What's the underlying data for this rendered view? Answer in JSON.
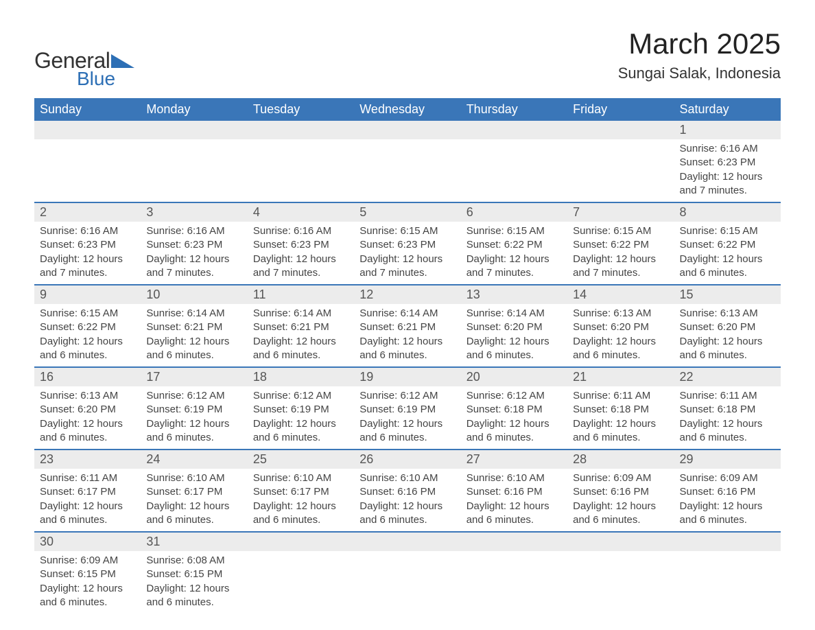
{
  "logo": {
    "text_general": "General",
    "text_blue": "Blue",
    "triangle_color": "#2d6fb5"
  },
  "header": {
    "month_title": "March 2025",
    "location": "Sungai Salak, Indonesia"
  },
  "colors": {
    "header_bg": "#3a76b8",
    "header_text": "#ffffff",
    "daynum_bg": "#ececec",
    "row_border": "#3a76b8",
    "body_text": "#444444",
    "page_bg": "#ffffff"
  },
  "typography": {
    "month_title_fontsize": 42,
    "location_fontsize": 22,
    "weekday_fontsize": 18,
    "daynum_fontsize": 18,
    "detail_fontsize": 15,
    "logo_fontsize": 32
  },
  "weekdays": [
    "Sunday",
    "Monday",
    "Tuesday",
    "Wednesday",
    "Thursday",
    "Friday",
    "Saturday"
  ],
  "weeks": [
    [
      null,
      null,
      null,
      null,
      null,
      null,
      {
        "day": "1",
        "sunrise": "Sunrise: 6:16 AM",
        "sunset": "Sunset: 6:23 PM",
        "daylight": "Daylight: 12 hours and 7 minutes."
      }
    ],
    [
      {
        "day": "2",
        "sunrise": "Sunrise: 6:16 AM",
        "sunset": "Sunset: 6:23 PM",
        "daylight": "Daylight: 12 hours and 7 minutes."
      },
      {
        "day": "3",
        "sunrise": "Sunrise: 6:16 AM",
        "sunset": "Sunset: 6:23 PM",
        "daylight": "Daylight: 12 hours and 7 minutes."
      },
      {
        "day": "4",
        "sunrise": "Sunrise: 6:16 AM",
        "sunset": "Sunset: 6:23 PM",
        "daylight": "Daylight: 12 hours and 7 minutes."
      },
      {
        "day": "5",
        "sunrise": "Sunrise: 6:15 AM",
        "sunset": "Sunset: 6:23 PM",
        "daylight": "Daylight: 12 hours and 7 minutes."
      },
      {
        "day": "6",
        "sunrise": "Sunrise: 6:15 AM",
        "sunset": "Sunset: 6:22 PM",
        "daylight": "Daylight: 12 hours and 7 minutes."
      },
      {
        "day": "7",
        "sunrise": "Sunrise: 6:15 AM",
        "sunset": "Sunset: 6:22 PM",
        "daylight": "Daylight: 12 hours and 7 minutes."
      },
      {
        "day": "8",
        "sunrise": "Sunrise: 6:15 AM",
        "sunset": "Sunset: 6:22 PM",
        "daylight": "Daylight: 12 hours and 6 minutes."
      }
    ],
    [
      {
        "day": "9",
        "sunrise": "Sunrise: 6:15 AM",
        "sunset": "Sunset: 6:22 PM",
        "daylight": "Daylight: 12 hours and 6 minutes."
      },
      {
        "day": "10",
        "sunrise": "Sunrise: 6:14 AM",
        "sunset": "Sunset: 6:21 PM",
        "daylight": "Daylight: 12 hours and 6 minutes."
      },
      {
        "day": "11",
        "sunrise": "Sunrise: 6:14 AM",
        "sunset": "Sunset: 6:21 PM",
        "daylight": "Daylight: 12 hours and 6 minutes."
      },
      {
        "day": "12",
        "sunrise": "Sunrise: 6:14 AM",
        "sunset": "Sunset: 6:21 PM",
        "daylight": "Daylight: 12 hours and 6 minutes."
      },
      {
        "day": "13",
        "sunrise": "Sunrise: 6:14 AM",
        "sunset": "Sunset: 6:20 PM",
        "daylight": "Daylight: 12 hours and 6 minutes."
      },
      {
        "day": "14",
        "sunrise": "Sunrise: 6:13 AM",
        "sunset": "Sunset: 6:20 PM",
        "daylight": "Daylight: 12 hours and 6 minutes."
      },
      {
        "day": "15",
        "sunrise": "Sunrise: 6:13 AM",
        "sunset": "Sunset: 6:20 PM",
        "daylight": "Daylight: 12 hours and 6 minutes."
      }
    ],
    [
      {
        "day": "16",
        "sunrise": "Sunrise: 6:13 AM",
        "sunset": "Sunset: 6:20 PM",
        "daylight": "Daylight: 12 hours and 6 minutes."
      },
      {
        "day": "17",
        "sunrise": "Sunrise: 6:12 AM",
        "sunset": "Sunset: 6:19 PM",
        "daylight": "Daylight: 12 hours and 6 minutes."
      },
      {
        "day": "18",
        "sunrise": "Sunrise: 6:12 AM",
        "sunset": "Sunset: 6:19 PM",
        "daylight": "Daylight: 12 hours and 6 minutes."
      },
      {
        "day": "19",
        "sunrise": "Sunrise: 6:12 AM",
        "sunset": "Sunset: 6:19 PM",
        "daylight": "Daylight: 12 hours and 6 minutes."
      },
      {
        "day": "20",
        "sunrise": "Sunrise: 6:12 AM",
        "sunset": "Sunset: 6:18 PM",
        "daylight": "Daylight: 12 hours and 6 minutes."
      },
      {
        "day": "21",
        "sunrise": "Sunrise: 6:11 AM",
        "sunset": "Sunset: 6:18 PM",
        "daylight": "Daylight: 12 hours and 6 minutes."
      },
      {
        "day": "22",
        "sunrise": "Sunrise: 6:11 AM",
        "sunset": "Sunset: 6:18 PM",
        "daylight": "Daylight: 12 hours and 6 minutes."
      }
    ],
    [
      {
        "day": "23",
        "sunrise": "Sunrise: 6:11 AM",
        "sunset": "Sunset: 6:17 PM",
        "daylight": "Daylight: 12 hours and 6 minutes."
      },
      {
        "day": "24",
        "sunrise": "Sunrise: 6:10 AM",
        "sunset": "Sunset: 6:17 PM",
        "daylight": "Daylight: 12 hours and 6 minutes."
      },
      {
        "day": "25",
        "sunrise": "Sunrise: 6:10 AM",
        "sunset": "Sunset: 6:17 PM",
        "daylight": "Daylight: 12 hours and 6 minutes."
      },
      {
        "day": "26",
        "sunrise": "Sunrise: 6:10 AM",
        "sunset": "Sunset: 6:16 PM",
        "daylight": "Daylight: 12 hours and 6 minutes."
      },
      {
        "day": "27",
        "sunrise": "Sunrise: 6:10 AM",
        "sunset": "Sunset: 6:16 PM",
        "daylight": "Daylight: 12 hours and 6 minutes."
      },
      {
        "day": "28",
        "sunrise": "Sunrise: 6:09 AM",
        "sunset": "Sunset: 6:16 PM",
        "daylight": "Daylight: 12 hours and 6 minutes."
      },
      {
        "day": "29",
        "sunrise": "Sunrise: 6:09 AM",
        "sunset": "Sunset: 6:16 PM",
        "daylight": "Daylight: 12 hours and 6 minutes."
      }
    ],
    [
      {
        "day": "30",
        "sunrise": "Sunrise: 6:09 AM",
        "sunset": "Sunset: 6:15 PM",
        "daylight": "Daylight: 12 hours and 6 minutes."
      },
      {
        "day": "31",
        "sunrise": "Sunrise: 6:08 AM",
        "sunset": "Sunset: 6:15 PM",
        "daylight": "Daylight: 12 hours and 6 minutes."
      },
      null,
      null,
      null,
      null,
      null
    ]
  ]
}
